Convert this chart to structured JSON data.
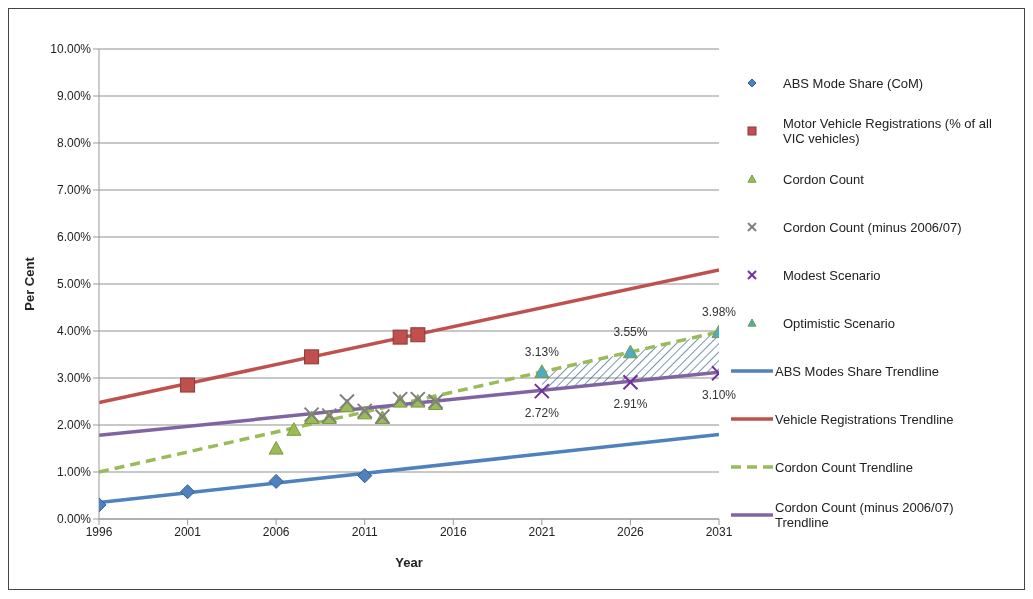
{
  "chart_data": {
    "type": "scatter",
    "xlabel": "Year",
    "ylabel": "Per Cent",
    "xlim": [
      1996,
      2031
    ],
    "xticks": [
      1996,
      2001,
      2006,
      2011,
      2016,
      2021,
      2026,
      2031
    ],
    "ylim": [
      0,
      10
    ],
    "yticks": [
      {
        "value": 0,
        "label": "0.00%"
      },
      {
        "value": 1,
        "label": "1.00%"
      },
      {
        "value": 2,
        "label": "2.00%"
      },
      {
        "value": 3,
        "label": "3.00%"
      },
      {
        "value": 4,
        "label": "4.00%"
      },
      {
        "value": 5,
        "label": "5.00%"
      },
      {
        "value": 6,
        "label": "6.00%"
      },
      {
        "value": 7,
        "label": "7.00%"
      },
      {
        "value": 8,
        "label": "8.00%"
      },
      {
        "value": 9,
        "label": "9.00%"
      },
      {
        "value": 10,
        "label": "10.00%"
      }
    ],
    "grid": "y",
    "legend": "right",
    "series": [
      {
        "name": "ABS Mode Share (CoM)",
        "marker": "diamond",
        "color": "#4f81bd",
        "x": [
          1996,
          2001,
          2006,
          2011
        ],
        "values": [
          0.3,
          0.58,
          0.8,
          0.92
        ]
      },
      {
        "name": "Motor Vehicle Registrations (% of all VIC vehicles)",
        "marker": "square",
        "color": "#c0504d",
        "x": [
          2001,
          2008,
          2013,
          2014
        ],
        "values": [
          2.85,
          3.45,
          3.87,
          3.92
        ]
      },
      {
        "name": "Cordon Count",
        "marker": "triangle",
        "color": "#9bbb59",
        "x": [
          2006,
          2007,
          2008,
          2009,
          2010,
          2011,
          2012,
          2013,
          2014,
          2015
        ],
        "values": [
          1.5,
          1.9,
          2.15,
          2.15,
          2.4,
          2.25,
          2.15,
          2.5,
          2.5,
          2.45
        ]
      },
      {
        "name": "Cordon Count (minus 2006/07)",
        "marker": "cross",
        "color": "#7f7f7f",
        "x": [
          2008,
          2009,
          2010,
          2011,
          2012,
          2013,
          2014,
          2015
        ],
        "values": [
          2.22,
          2.2,
          2.5,
          2.3,
          2.18,
          2.55,
          2.55,
          2.5
        ]
      },
      {
        "name": "Modest Scenario",
        "marker": "cross",
        "color": "#7030a0",
        "x": [
          2021,
          2026,
          2031
        ],
        "values": [
          2.72,
          2.91,
          3.1
        ],
        "value_labels": [
          "2.72%",
          "2.91%",
          "3.10%"
        ]
      },
      {
        "name": "Optimistic Scenario",
        "marker": "triangle",
        "color": "#4bacc6",
        "x": [
          2021,
          2026,
          2031
        ],
        "values": [
          3.13,
          3.55,
          3.98
        ],
        "value_labels": [
          "3.13%",
          "3.55%",
          "3.98%"
        ],
        "lower": [
          2.72,
          2.91,
          3.1
        ],
        "upper": [
          3.13,
          3.55,
          3.98
        ]
      },
      {
        "name": "ABS Modes Share Trendline",
        "type": "line",
        "marker": "none",
        "line_style": "solid",
        "color": "#4f81bd",
        "x": [
          1996,
          2031
        ],
        "values": [
          0.35,
          1.8
        ]
      },
      {
        "name": "Vehicle Registrations Trendline",
        "type": "line",
        "marker": "none",
        "line_style": "solid",
        "color": "#c0504d",
        "x": [
          1996,
          2031
        ],
        "values": [
          2.48,
          5.3
        ]
      },
      {
        "name": "Cordon Count Trendline",
        "type": "line",
        "marker": "none",
        "line_style": "dashed",
        "color": "#9bbb59",
        "x": [
          1996,
          2031
        ],
        "values": [
          1.0,
          3.98
        ]
      },
      {
        "name": "Cordon Count (minus 2006/07) Trendline",
        "type": "line",
        "line_style": "solid",
        "color": "#8064a2",
        "x": [
          1996,
          2031
        ],
        "values": [
          1.78,
          3.12
        ]
      }
    ]
  }
}
